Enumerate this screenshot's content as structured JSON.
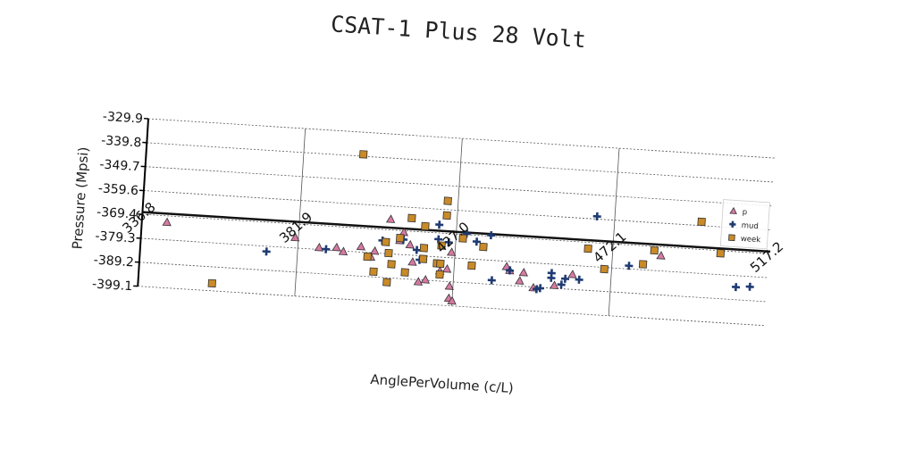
{
  "chart_data": {
    "type": "scatter",
    "title": "CSAT-1 Plus 28 Volt",
    "xlabel": "AnglePerVolume (c/L)",
    "ylabel": "Pressure (Mpsi)",
    "xlim": [
      336.8,
      517.2
    ],
    "ylim": [
      -399.1,
      -329.9
    ],
    "x_ticks": [
      "336.8",
      "381.9",
      "427.0",
      "472.1",
      "517.2"
    ],
    "y_ticks": [
      "-329.9",
      "-339.8",
      "-349.7",
      "-359.6",
      "-369.4",
      "-379.3",
      "-389.2",
      "-399.1"
    ],
    "grid": true,
    "legend_position": "top-right",
    "reference_line_y": -368.5,
    "series": [
      {
        "name": "p",
        "marker": "triangle",
        "color": "#d67aa3",
        "points": [
          [
            344,
            -372
          ],
          [
            381,
            -375
          ],
          [
            388,
            -378.5
          ],
          [
            393,
            -378
          ],
          [
            395,
            -379.5
          ],
          [
            400,
            -377
          ],
          [
            403,
            -381
          ],
          [
            404,
            -378.5
          ],
          [
            408,
            -365
          ],
          [
            411,
            -373.5
          ],
          [
            412,
            -370
          ],
          [
            414,
            -375
          ],
          [
            415,
            -382
          ],
          [
            417,
            -390
          ],
          [
            419,
            -389
          ],
          [
            423,
            -385
          ],
          [
            425,
            -384
          ],
          [
            426,
            -377
          ],
          [
            426,
            -391
          ],
          [
            426,
            -396
          ],
          [
            427,
            -397
          ],
          [
            442,
            -381.5
          ],
          [
            443,
            -383
          ],
          [
            446,
            -387
          ],
          [
            447,
            -383.5
          ],
          [
            450,
            -389.5
          ],
          [
            456,
            -388
          ],
          [
            461,
            -383
          ],
          [
            486,
            -373
          ]
        ]
      },
      {
        "name": "mud",
        "marker": "plus",
        "color": "#1f3b73",
        "points": [
          [
            373,
            -381.5
          ],
          [
            390,
            -379
          ],
          [
            406,
            -374
          ],
          [
            412,
            -373
          ],
          [
            416,
            -377
          ],
          [
            417,
            -381
          ],
          [
            422,
            -372
          ],
          [
            422,
            -366
          ],
          [
            425,
            -373
          ],
          [
            430,
            -369
          ],
          [
            433,
            -372
          ],
          [
            437,
            -369
          ],
          [
            438,
            -387.5
          ],
          [
            443,
            -383
          ],
          [
            451,
            -390
          ],
          [
            452,
            -389.5
          ],
          [
            455,
            -385
          ],
          [
            455,
            -383
          ],
          [
            458,
            -387.5
          ],
          [
            459,
            -385
          ],
          [
            463,
            -385
          ],
          [
            467,
            -358.5
          ],
          [
            477,
            -378
          ],
          [
            508,
            -384
          ],
          [
            512,
            -383.5
          ]
        ]
      },
      {
        "name": "week",
        "marker": "square",
        "color": "#c98a28",
        "points": [
          [
            358,
            -396
          ],
          [
            399,
            -339
          ],
          [
            402,
            -381
          ],
          [
            404,
            -387
          ],
          [
            407,
            -374.5
          ],
          [
            408,
            -379
          ],
          [
            408,
            -391
          ],
          [
            409,
            -383.5
          ],
          [
            411,
            -372.5
          ],
          [
            413,
            -386.5
          ],
          [
            414,
            -364
          ],
          [
            418,
            -367
          ],
          [
            418,
            -380.5
          ],
          [
            418,
            -376
          ],
          [
            422,
            -382
          ],
          [
            423,
            -374.5
          ],
          [
            423,
            -382
          ],
          [
            423,
            -386.5
          ],
          [
            424,
            -356
          ],
          [
            424,
            -362
          ],
          [
            429,
            -371
          ],
          [
            432,
            -382
          ],
          [
            435,
            -374
          ],
          [
            465,
            -372
          ],
          [
            470,
            -380
          ],
          [
            481,
            -377
          ],
          [
            484,
            -371
          ],
          [
            497,
            -358
          ],
          [
            503,
            -370.5
          ]
        ]
      }
    ]
  }
}
